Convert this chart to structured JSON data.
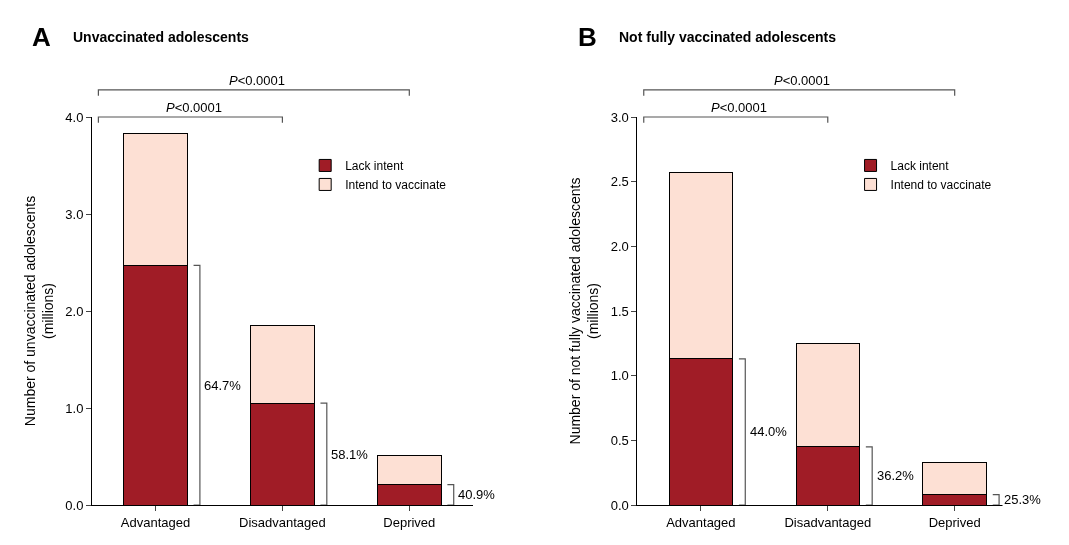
{
  "chart_data": [
    {
      "type": "bar",
      "stacked": true,
      "title": "Unvaccinated adolescents",
      "subtitle": "A",
      "ylabel": "Number of unvaccinated adolescents\n(millions)",
      "categories": [
        "Advantaged",
        "Disadvantaged",
        "Deprived"
      ],
      "series": [
        {
          "name": "Lack intent",
          "color": "#a01c26",
          "values": [
            2.47,
            1.05,
            0.21
          ]
        },
        {
          "name": "Intend to vaccinate",
          "color": "#fde0d4",
          "values": [
            1.36,
            0.8,
            0.3
          ]
        }
      ],
      "ylim": [
        0,
        4.0
      ],
      "yticks": [
        {
          "value": 0,
          "label": "0.0"
        },
        {
          "value": 1,
          "label": "1.0"
        },
        {
          "value": 2,
          "label": "2.0"
        },
        {
          "value": 3,
          "label": "3.0"
        },
        {
          "value": 4,
          "label": "4.0"
        }
      ],
      "annotations": [
        "64.7%",
        "58.1%",
        "40.9%",
        "P<0.0001",
        "P<0.0001"
      ],
      "legend": "top right"
    },
    {
      "type": "bar",
      "stacked": true,
      "title": "Not fully vaccinated adolescents",
      "subtitle": "B",
      "ylabel": "Number of not fully vaccinated adolescents\n(millions)",
      "categories": [
        "Advantaged",
        "Disadvantaged",
        "Deprived"
      ],
      "series": [
        {
          "name": "Lack intent",
          "color": "#a01c26",
          "values": [
            1.13,
            0.45,
            0.08
          ]
        },
        {
          "name": "Intend to vaccinate",
          "color": "#fde0d4",
          "values": [
            1.44,
            0.8,
            0.25
          ]
        }
      ],
      "ylim": [
        0,
        3.0
      ],
      "yticks": [
        {
          "value": 0,
          "label": "0.0"
        },
        {
          "value": 0.5,
          "label": "0.5"
        },
        {
          "value": 1,
          "label": "1.0"
        },
        {
          "value": 1.5,
          "label": "1.5"
        },
        {
          "value": 2,
          "label": "2.0"
        },
        {
          "value": 2.5,
          "label": "2.5"
        },
        {
          "value": 3,
          "label": "3.0"
        }
      ],
      "annotations": [
        "44.0%",
        "36.2%",
        "25.3%",
        "P<0.0001",
        "P<0.0001"
      ],
      "legend": "top right"
    }
  ]
}
